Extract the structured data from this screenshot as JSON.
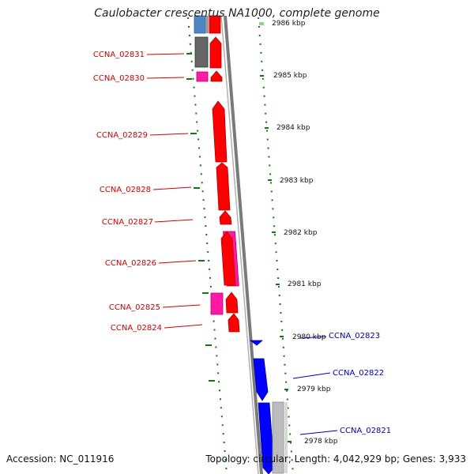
{
  "title": "Caulobacter crescentus NA1000, complete genome",
  "footer": {
    "accession": "Accession: NC_011916",
    "summary": "Topology: circular; Length: 4,042,929 bp; Genes: 3,933"
  },
  "colors": {
    "reverse_gene": "#ff0000",
    "reverse_gene_edge": "#b00000",
    "reverse_label": "#cc0000",
    "reverse_rna_pink": "#ff1aa6",
    "forward_gene": "#0000ff",
    "forward_label": "#0000aa",
    "pseudogene_gray": "#606060",
    "light_gray": "#bdbdbd",
    "steel_blue": "#4f86c6",
    "gc_dots": "#117711",
    "backbone": "#808080"
  },
  "scale": {
    "ticks": [
      {
        "label": "2986 kbp"
      },
      {
        "label": "2985 kbp"
      },
      {
        "label": "2984 kbp"
      },
      {
        "label": "2983 kbp"
      },
      {
        "label": "2982 kbp"
      },
      {
        "label": "2981 kbp"
      },
      {
        "label": "2980 kbp"
      },
      {
        "label": "2979 kbp"
      },
      {
        "label": "2978 kbp"
      }
    ]
  },
  "genes_reverse": [
    {
      "label": "CCNA_02831"
    },
    {
      "label": "CCNA_02830"
    },
    {
      "label": "CCNA_02829"
    },
    {
      "label": "CCNA_02828"
    },
    {
      "label": "CCNA_02827"
    },
    {
      "label": "CCNA_02826"
    },
    {
      "label": "CCNA_02825"
    },
    {
      "label": "CCNA_02824"
    }
  ],
  "genes_forward": [
    {
      "label": "CCNA_02823"
    },
    {
      "label": "CCNA_02822"
    },
    {
      "label": "CCNA_02821"
    }
  ]
}
